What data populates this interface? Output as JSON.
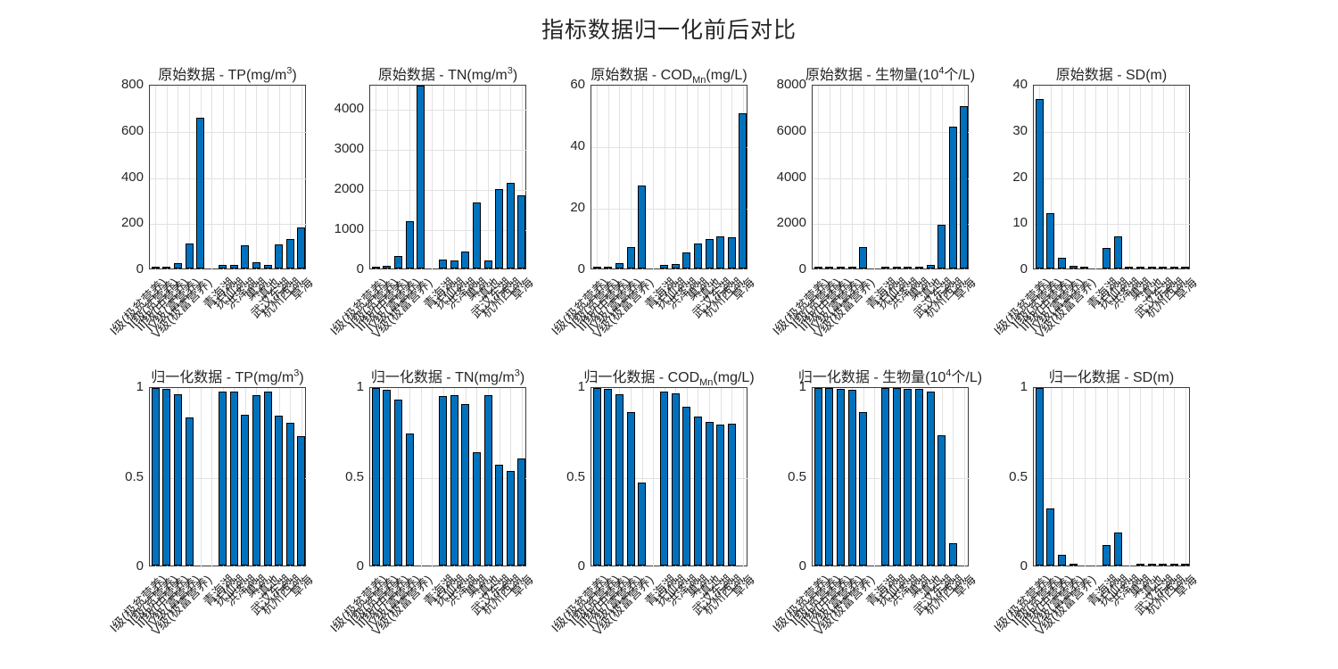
{
  "figure": {
    "title": "指标数据归一化前后对比"
  },
  "colors": {
    "bar_fill": "#0072BD",
    "bar_edge": "#000000",
    "grid": "#e2e2e2",
    "axis": "#3c3c3c",
    "text": "#262626",
    "background": "#ffffff"
  },
  "chart_data": {
    "type": "bar",
    "layout": "2 rows x 5 columns, grid on, no legend, x tick labels rotated 45",
    "categories": [
      "I级(极贫营养)",
      "II级(贫营养)",
      "III级(中营养)",
      "IV级(富营养)",
      "V级(极富营养)",
      "",
      "青海湖",
      "抚仙湖",
      "洪泽湖",
      "巢湖",
      "滇池",
      "武汉东湖",
      "杭州西湖",
      "草海"
    ],
    "charts": [
      {
        "title_prefix": "原始数据 - ",
        "title_segments": [
          {
            "text": "TP(mg/m"
          },
          {
            "text": "3",
            "style": "sup"
          },
          {
            "text": ")"
          }
        ],
        "ylim": [
          0,
          800
        ],
        "yticks": [
          0,
          200,
          400,
          600,
          800
        ],
        "ytick_labels": [
          "0",
          "200",
          "400",
          "600",
          "800"
        ],
        "values": [
          1,
          4,
          23,
          110,
          660,
          null,
          15,
          15,
          100,
          28,
          15,
          105,
          130,
          180
        ]
      },
      {
        "title_prefix": "原始数据 - ",
        "title_segments": [
          {
            "text": "TN(mg/m"
          },
          {
            "text": "3",
            "style": "sup"
          },
          {
            "text": ")"
          }
        ],
        "ylim": [
          0,
          4600
        ],
        "yticks": [
          0,
          1000,
          2000,
          3000,
          4000
        ],
        "ytick_labels": [
          "0",
          "1000",
          "2000",
          "3000",
          "4000"
        ],
        "values": [
          20,
          60,
          310,
          1200,
          4600,
          null,
          220,
          200,
          430,
          1670,
          200,
          2000,
          2160,
          1840
        ]
      },
      {
        "title_prefix": "原始数据 - ",
        "title_segments": [
          {
            "text": "COD"
          },
          {
            "text": "Mn",
            "style": "sub"
          },
          {
            "text": "(mg/L)"
          }
        ],
        "ylim": [
          0,
          60
        ],
        "yticks": [
          0,
          20,
          40,
          60
        ],
        "ytick_labels": [
          "0",
          "20",
          "40",
          "60"
        ],
        "values": [
          0.09,
          0.36,
          1.8,
          7.1,
          27.1,
          null,
          1.2,
          1.6,
          5.4,
          8.3,
          9.8,
          10.5,
          10.2,
          51
        ]
      },
      {
        "title_prefix": "原始数据 - ",
        "title_segments": [
          {
            "text": "生物量(10"
          },
          {
            "text": "4",
            "style": "sup"
          },
          {
            "text": "个/L)"
          }
        ],
        "ylim": [
          0,
          8000
        ],
        "yticks": [
          0,
          2000,
          4000,
          6000,
          8000
        ],
        "ytick_labels": [
          "0",
          "2000",
          "4000",
          "6000",
          "8000"
        ],
        "values": [
          2,
          10,
          40,
          90,
          950,
          null,
          10,
          10,
          20,
          30,
          150,
          1900,
          6200,
          7100
        ]
      },
      {
        "title_prefix": "原始数据 - ",
        "title_segments": [
          {
            "text": "SD(m)"
          }
        ],
        "ylim": [
          0,
          40
        ],
        "yticks": [
          0,
          10,
          20,
          30,
          40
        ],
        "ytick_labels": [
          "0",
          "10",
          "20",
          "30",
          "40"
        ],
        "values": [
          37,
          12,
          2.4,
          0.55,
          0.17,
          null,
          4.5,
          7,
          0.17,
          0.2,
          0.4,
          0.25,
          0.2,
          0.35
        ]
      },
      {
        "title_prefix": "归一化数据 - ",
        "title_segments": [
          {
            "text": "TP(mg/m"
          },
          {
            "text": "3",
            "style": "sup"
          },
          {
            "text": ")"
          }
        ],
        "ylim": [
          0,
          1
        ],
        "yticks": [
          0,
          0.5,
          1
        ],
        "ytick_labels": [
          "0",
          "0.5",
          "1"
        ],
        "values": [
          1,
          0.995,
          0.967,
          0.835,
          0,
          null,
          0.979,
          0.979,
          0.85,
          0.959,
          0.979,
          0.842,
          0.804,
          0.728
        ]
      },
      {
        "title_prefix": "归一化数据 - ",
        "title_segments": [
          {
            "text": "TN(mg/m"
          },
          {
            "text": "3",
            "style": "sup"
          },
          {
            "text": ")"
          }
        ],
        "ylim": [
          0,
          1
        ],
        "yticks": [
          0,
          0.5,
          1
        ],
        "ytick_labels": [
          "0",
          "0.5",
          "1"
        ],
        "values": [
          1,
          0.991,
          0.937,
          0.742,
          0,
          null,
          0.956,
          0.961,
          0.91,
          0.64,
          0.961,
          0.568,
          0.533,
          0.603
        ]
      },
      {
        "title_prefix": "归一化数据 - ",
        "title_segments": [
          {
            "text": "COD"
          },
          {
            "text": "Mn",
            "style": "sub"
          },
          {
            "text": "(mg/L)"
          }
        ],
        "ylim": [
          0,
          1
        ],
        "yticks": [
          0,
          0.5,
          1
        ],
        "ytick_labels": [
          "0",
          "0.5",
          "1"
        ],
        "values": [
          1,
          0.995,
          0.966,
          0.862,
          0.469,
          null,
          0.978,
          0.97,
          0.896,
          0.839,
          0.809,
          0.796,
          0.801,
          0
        ]
      },
      {
        "title_prefix": "归一化数据 - ",
        "title_segments": [
          {
            "text": "生物量(10"
          },
          {
            "text": "4",
            "style": "sup"
          },
          {
            "text": "个/L)"
          }
        ],
        "ylim": [
          0,
          1
        ],
        "yticks": [
          0,
          0.5,
          1
        ],
        "ytick_labels": [
          "0",
          "0.5",
          "1"
        ],
        "values": [
          1,
          0.999,
          0.995,
          0.988,
          0.866,
          null,
          0.999,
          0.999,
          0.997,
          0.996,
          0.979,
          0.733,
          0.127,
          0
        ]
      },
      {
        "title_prefix": "归一化数据 - ",
        "title_segments": [
          {
            "text": "SD(m)"
          }
        ],
        "ylim": [
          0,
          1
        ],
        "yticks": [
          0,
          0.5,
          1
        ],
        "ytick_labels": [
          "0",
          "0.5",
          "1"
        ],
        "values": [
          1,
          0.321,
          0.061,
          0.01,
          0,
          null,
          0.118,
          0.185,
          0,
          0.001,
          0.006,
          0.002,
          0.001,
          0.005
        ]
      }
    ]
  }
}
